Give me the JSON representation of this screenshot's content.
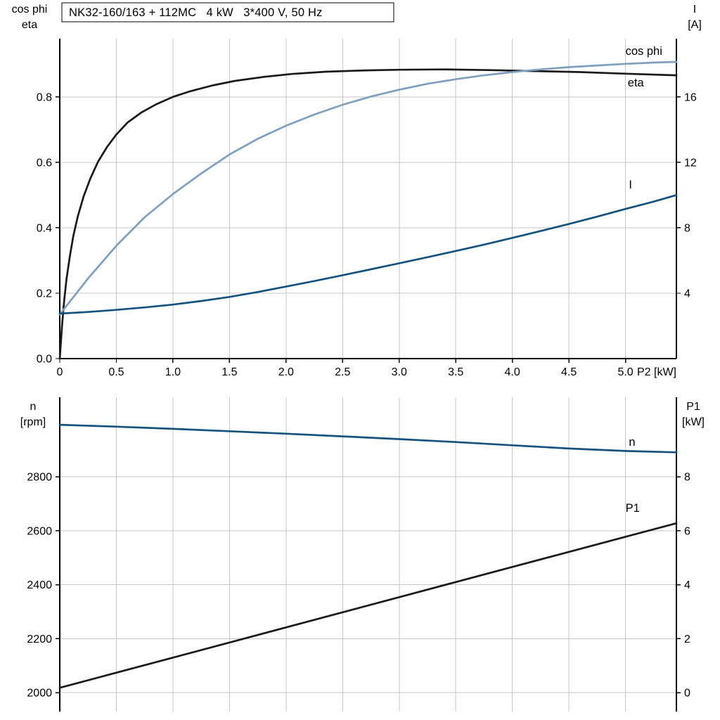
{
  "title_box": {
    "text": "NK32-160/163 + 112MC   4 kW   3*400 V, 50 Hz"
  },
  "colors": {
    "black": "#1a1a1a",
    "light_blue": "#7e9fbe",
    "dark_blue": "#15527e",
    "grid": "#c6c6c6",
    "axis": "#000000",
    "background": "#ffffff"
  },
  "chart_data": [
    {
      "type": "line",
      "name": "electrical",
      "title": "NK32-160/163 + 112MC   4 kW   3*400 V, 50 Hz",
      "xlabel": "P2 [kW]",
      "ylabel_left": "cos phi / eta",
      "ylabel_right": "I [A]",
      "xlim": [
        0,
        5.45
      ],
      "x": {
        "min": 0,
        "max": 5.45,
        "ticks": [
          0,
          0.5,
          1,
          1.5,
          2,
          2.5,
          3,
          3.5,
          4,
          4.5,
          5
        ],
        "tick_labels": [
          "0",
          "0.5",
          "1.0",
          "1.5",
          "2.0",
          "2.5",
          "3.0",
          "3.5",
          "4.0",
          "4.5",
          "5.0"
        ],
        "axis_label": "P2 [kW]",
        "show_axis": true
      },
      "left_axis": {
        "title_lines": [
          "cos phi",
          "eta"
        ],
        "min": 0,
        "max": 0.978,
        "ticks": [
          0,
          0.2,
          0.4,
          0.6,
          0.8
        ],
        "tick_labels": [
          "0.0",
          "0.2",
          "0.4",
          "0.6",
          "0.8"
        ]
      },
      "right_axis": {
        "title_lines": [
          "I",
          "[A]"
        ],
        "min": 0,
        "max": 19.56,
        "ticks": [
          4,
          8,
          12,
          16
        ],
        "tick_labels": [
          "4",
          "8",
          "12",
          "16"
        ]
      },
      "series": [
        {
          "name": "eta",
          "axis": "left",
          "color": "black",
          "points": [
            [
              0,
              0
            ],
            [
              0.02,
              0.1
            ],
            [
              0.04,
              0.18
            ],
            [
              0.06,
              0.245
            ],
            [
              0.09,
              0.315
            ],
            [
              0.12,
              0.375
            ],
            [
              0.16,
              0.435
            ],
            [
              0.21,
              0.495
            ],
            [
              0.27,
              0.55
            ],
            [
              0.34,
              0.603
            ],
            [
              0.42,
              0.648
            ],
            [
              0.5,
              0.685
            ],
            [
              0.6,
              0.722
            ],
            [
              0.72,
              0.752
            ],
            [
              0.85,
              0.777
            ],
            [
              1.0,
              0.8
            ],
            [
              1.15,
              0.817
            ],
            [
              1.35,
              0.835
            ],
            [
              1.55,
              0.849
            ],
            [
              1.8,
              0.861
            ],
            [
              2.05,
              0.87
            ],
            [
              2.35,
              0.877
            ],
            [
              2.7,
              0.881
            ],
            [
              3.0,
              0.883
            ],
            [
              3.4,
              0.884
            ],
            [
              3.8,
              0.882
            ],
            [
              4.2,
              0.879
            ],
            [
              4.6,
              0.876
            ],
            [
              5.0,
              0.871
            ],
            [
              5.45,
              0.866
            ]
          ],
          "label": {
            "text": "eta",
            "x": 5.02,
            "value": 0.832,
            "color": "black"
          }
        },
        {
          "name": "cos phi",
          "axis": "left",
          "color": "light_blue",
          "points": [
            [
              0,
              0.135
            ],
            [
              0.25,
              0.245
            ],
            [
              0.5,
              0.345
            ],
            [
              0.75,
              0.432
            ],
            [
              1.0,
              0.503
            ],
            [
              1.25,
              0.566
            ],
            [
              1.5,
              0.624
            ],
            [
              1.75,
              0.672
            ],
            [
              2.0,
              0.712
            ],
            [
              2.25,
              0.746
            ],
            [
              2.5,
              0.776
            ],
            [
              2.75,
              0.801
            ],
            [
              3.0,
              0.822
            ],
            [
              3.25,
              0.84
            ],
            [
              3.5,
              0.854
            ],
            [
              3.75,
              0.866
            ],
            [
              4.0,
              0.876
            ],
            [
              4.25,
              0.884
            ],
            [
              4.5,
              0.891
            ],
            [
              4.75,
              0.896
            ],
            [
              5.0,
              0.901
            ],
            [
              5.25,
              0.905
            ],
            [
              5.45,
              0.907
            ]
          ],
          "label": {
            "text": "cos phi",
            "x": 5.0,
            "value": 0.929,
            "color": "light_blue"
          }
        },
        {
          "name": "I",
          "axis": "right",
          "color": "dark_blue",
          "points": [
            [
              0,
              2.75
            ],
            [
              0.25,
              2.85
            ],
            [
              0.5,
              2.98
            ],
            [
              0.75,
              3.13
            ],
            [
              1.0,
              3.3
            ],
            [
              1.25,
              3.52
            ],
            [
              1.5,
              3.77
            ],
            [
              1.75,
              4.07
            ],
            [
              2.0,
              4.4
            ],
            [
              2.25,
              4.74
            ],
            [
              2.5,
              5.1
            ],
            [
              2.75,
              5.46
            ],
            [
              3.0,
              5.83
            ],
            [
              3.25,
              6.2
            ],
            [
              3.5,
              6.58
            ],
            [
              3.75,
              6.97
            ],
            [
              4.0,
              7.38
            ],
            [
              4.25,
              7.8
            ],
            [
              4.5,
              8.23
            ],
            [
              4.75,
              8.68
            ],
            [
              5.0,
              9.15
            ],
            [
              5.25,
              9.6
            ],
            [
              5.45,
              10.0
            ]
          ],
          "label": {
            "text": "I",
            "x": 5.03,
            "value": 10.4,
            "color": "dark_blue"
          }
        }
      ]
    },
    {
      "type": "line",
      "name": "mechanical",
      "title": "",
      "xlabel": "",
      "ylabel_left": "n [rpm]",
      "ylabel_right": "P1 [kW]",
      "xlim": [
        0,
        5.45
      ],
      "x": {
        "min": 0,
        "max": 5.45,
        "ticks": [
          0.5,
          1,
          1.5,
          2,
          2.5,
          3,
          3.5,
          4,
          4.5,
          5
        ],
        "tick_labels": [],
        "axis_label": "",
        "show_axis": false
      },
      "left_axis": {
        "title_lines": [
          "n",
          "[rpm]"
        ],
        "min": 1930,
        "max": 3095,
        "ticks": [
          2000,
          2200,
          2400,
          2600,
          2800
        ],
        "tick_labels": [
          "2000",
          "2200",
          "2400",
          "2600",
          "2800"
        ]
      },
      "right_axis": {
        "title_lines": [
          "P1",
          "[kW]"
        ],
        "min": -0.7,
        "max": 10.95,
        "ticks": [
          0,
          2,
          4,
          6,
          8
        ],
        "tick_labels": [
          "0",
          "2",
          "4",
          "6",
          "8"
        ]
      },
      "series": [
        {
          "name": "P1",
          "axis": "right",
          "color": "black",
          "points": [
            [
              0,
              0.18
            ],
            [
              0.5,
              0.74
            ],
            [
              1.0,
              1.3
            ],
            [
              1.5,
              1.86
            ],
            [
              2.0,
              2.42
            ],
            [
              2.5,
              2.98
            ],
            [
              3.0,
              3.54
            ],
            [
              3.5,
              4.1
            ],
            [
              4.0,
              4.66
            ],
            [
              4.5,
              5.22
            ],
            [
              5.0,
              5.78
            ],
            [
              5.45,
              6.28
            ]
          ],
          "label": {
            "text": "P1",
            "x": 5.0,
            "value": 6.7,
            "color": "black"
          }
        },
        {
          "name": "n",
          "axis": "left",
          "color": "dark_blue",
          "points": [
            [
              0,
              2993
            ],
            [
              0.5,
              2986
            ],
            [
              1.0,
              2978
            ],
            [
              1.5,
              2969
            ],
            [
              2.0,
              2960
            ],
            [
              2.5,
              2950
            ],
            [
              3.0,
              2940
            ],
            [
              3.5,
              2929
            ],
            [
              4.0,
              2917
            ],
            [
              4.5,
              2905
            ],
            [
              5.0,
              2896
            ],
            [
              5.45,
              2891
            ]
          ],
          "label": {
            "text": "n",
            "x": 5.03,
            "value": 2915,
            "color": "dark_blue"
          }
        }
      ]
    }
  ]
}
